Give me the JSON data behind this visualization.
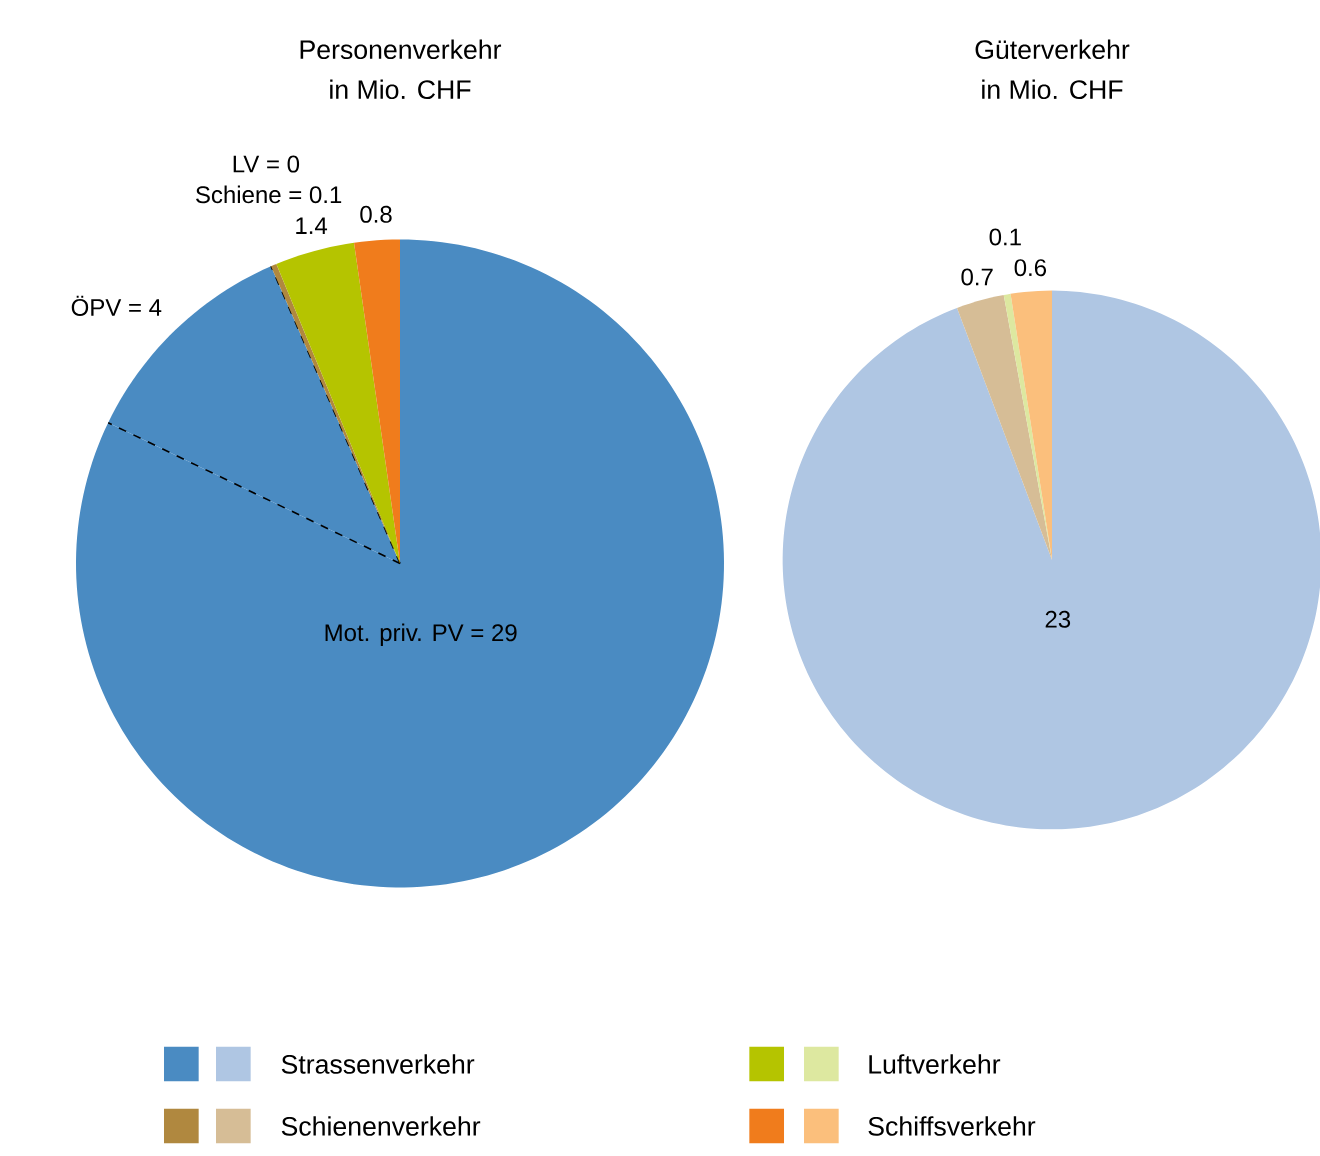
{
  "chart_data": [
    {
      "type": "pie",
      "title": "Personenverkehr",
      "subtitle": "in Mio. CHF",
      "values": [
        29,
        4,
        0,
        0.1,
        1.4,
        0.8
      ],
      "colors": [
        "#4a8bc2",
        "#4a8bc2",
        "#4a8bc2",
        "#b0883f",
        "#b5c400",
        "#f07c1c"
      ],
      "value_labels": [
        "Mot. priv. PV = 29",
        "ÖPV = 4",
        "LV = 0",
        "Schiene = 0.1",
        "1.4",
        "0.8"
      ]
    },
    {
      "type": "pie",
      "title": "Güterverkehr",
      "subtitle": "in Mio. CHF",
      "categories": [
        "Strassenverkehr",
        "Schienenverkehr",
        "Luftverkehr",
        "Schiffsverkehr"
      ],
      "values": [
        23,
        0.7,
        0.1,
        0.6
      ],
      "colors": [
        "#afc6e3",
        "#d6bd96",
        "#dde8a0",
        "#fbbf7c"
      ],
      "data_labels": true,
      "legend": "bottom"
    }
  ]
}
